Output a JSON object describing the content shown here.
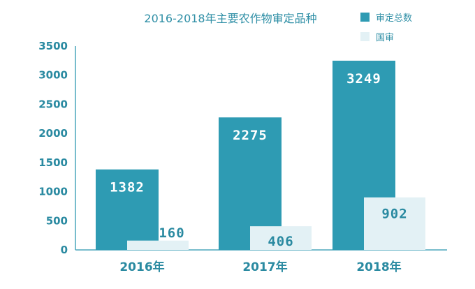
{
  "chart_data": {
    "type": "bar",
    "title": "2016-2018年主要农作物审定品种",
    "categories": [
      "2016年",
      "2017年",
      "2018年"
    ],
    "series": [
      {
        "name": "审定总数",
        "values": [
          1382,
          2275,
          3249
        ],
        "color": "#2e9bb3"
      },
      {
        "name": "国审",
        "values": [
          160,
          406,
          902
        ],
        "color": "#e3f1f5"
      }
    ],
    "yticks": [
      "0",
      "500",
      "1000",
      "1500",
      "2000",
      "2500",
      "3000",
      "3500"
    ],
    "ylim": [
      0,
      3500
    ],
    "legend": "top-right",
    "grid": false
  }
}
